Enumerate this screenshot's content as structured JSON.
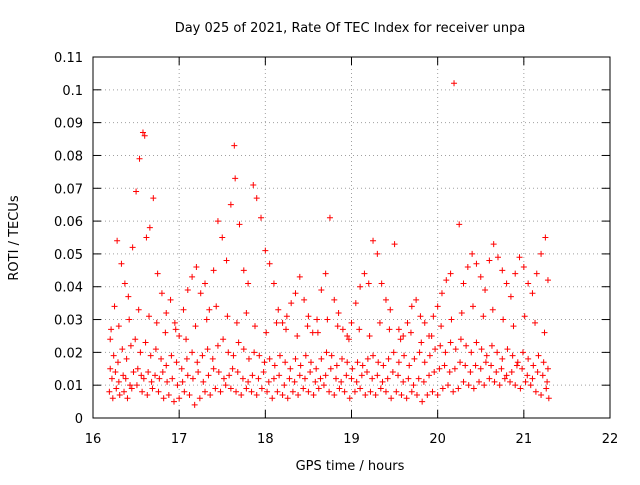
{
  "chart_data": {
    "type": "scatter",
    "title": "Day 025 of 2021, Rate Of TEC Index for receiver unpa",
    "xlabel": "GPS time / hours",
    "ylabel": "ROTI / TECUs",
    "xlim": [
      16,
      22
    ],
    "ylim": [
      0,
      0.11
    ],
    "x_ticks": [
      16,
      17,
      18,
      19,
      20,
      21,
      22
    ],
    "x_tick_labels": [
      "16",
      "17",
      "18",
      "19",
      "20",
      "21",
      "22"
    ],
    "y_ticks": [
      0,
      0.01,
      0.02,
      0.03,
      0.04,
      0.05,
      0.06,
      0.07,
      0.08,
      0.09,
      0.1,
      0.11
    ],
    "y_tick_labels": [
      "0",
      "0.01",
      "0.02",
      "0.03",
      "0.04",
      "0.05",
      "0.06",
      "0.07",
      "0.08",
      "0.09",
      "0.1",
      "0.11"
    ],
    "grid": true,
    "legend": "none",
    "marker": "+",
    "color": "#ff0000",
    "x_data_range": [
      16.17,
      21.3
    ],
    "series": [
      {
        "x": [
          16.21,
          16.25,
          16.28,
          16.33,
          16.37,
          16.41,
          16.46,
          16.5,
          16.54,
          16.58,
          16.6,
          16.62,
          16.66,
          16.7,
          16.75,
          16.8,
          16.85,
          16.9,
          16.95,
          17.0,
          17.05,
          17.1,
          17.15,
          17.2,
          17.25,
          17.3,
          17.35,
          17.4,
          17.45,
          17.5,
          17.55,
          17.6,
          17.64,
          17.65,
          17.7,
          17.75,
          17.8,
          17.86,
          17.9,
          17.95,
          18.0,
          18.05,
          18.1,
          18.15,
          18.2,
          18.25,
          18.3,
          18.35,
          18.4,
          18.45,
          18.5,
          18.55,
          18.6,
          18.65,
          18.7,
          18.75,
          18.8,
          18.85,
          18.9,
          18.95,
          19.0,
          19.05,
          19.1,
          19.15,
          19.2,
          19.25,
          19.3,
          19.35,
          19.4,
          19.45,
          19.5,
          19.55,
          19.6,
          19.65,
          19.7,
          19.75,
          19.8,
          19.85,
          19.9,
          19.95,
          20.0,
          20.05,
          20.1,
          20.15,
          20.19,
          20.25,
          20.3,
          20.35,
          20.4,
          20.45,
          20.5,
          20.55,
          20.6,
          20.65,
          20.7,
          20.75,
          20.8,
          20.85,
          20.9,
          20.95,
          21.0,
          21.05,
          21.1,
          21.15,
          21.2,
          21.25,
          21.28
        ],
        "y": [
          0.027,
          0.034,
          0.054,
          0.047,
          0.041,
          0.037,
          0.052,
          0.069,
          0.079,
          0.087,
          0.086,
          0.055,
          0.058,
          0.067,
          0.044,
          0.038,
          0.032,
          0.036,
          0.029,
          0.025,
          0.033,
          0.039,
          0.043,
          0.046,
          0.038,
          0.041,
          0.033,
          0.045,
          0.06,
          0.055,
          0.048,
          0.065,
          0.083,
          0.073,
          0.059,
          0.045,
          0.041,
          0.071,
          0.067,
          0.061,
          0.051,
          0.047,
          0.041,
          0.033,
          0.029,
          0.031,
          0.035,
          0.038,
          0.043,
          0.036,
          0.031,
          0.026,
          0.03,
          0.039,
          0.044,
          0.061,
          0.036,
          0.032,
          0.027,
          0.025,
          0.029,
          0.035,
          0.04,
          0.044,
          0.041,
          0.054,
          0.05,
          0.041,
          0.036,
          0.033,
          0.053,
          0.027,
          0.025,
          0.029,
          0.034,
          0.036,
          0.031,
          0.029,
          0.025,
          0.031,
          0.034,
          0.038,
          0.042,
          0.044,
          0.102,
          0.059,
          0.041,
          0.046,
          0.05,
          0.047,
          0.043,
          0.039,
          0.048,
          0.053,
          0.049,
          0.045,
          0.041,
          0.037,
          0.044,
          0.049,
          0.046,
          0.041,
          0.038,
          0.044,
          0.05,
          0.055,
          0.042
        ]
      },
      {
        "x": [
          16.2,
          16.24,
          16.29,
          16.34,
          16.39,
          16.44,
          16.49,
          16.55,
          16.61,
          16.67,
          16.73,
          16.79,
          16.85,
          16.91,
          16.97,
          17.03,
          17.09,
          17.15,
          17.21,
          17.27,
          17.33,
          17.39,
          17.45,
          17.51,
          17.57,
          17.63,
          17.69,
          17.75,
          17.81,
          17.87,
          17.93,
          17.99,
          18.05,
          18.11,
          18.17,
          18.23,
          18.29,
          18.35,
          18.41,
          18.47,
          18.53,
          18.59,
          18.65,
          18.71,
          18.77,
          18.83,
          18.89,
          18.95,
          19.01,
          19.07,
          19.13,
          19.19,
          19.25,
          19.31,
          19.37,
          19.43,
          19.49,
          19.55,
          19.61,
          19.67,
          19.73,
          19.79,
          19.85,
          19.91,
          19.97,
          20.03,
          20.09,
          20.15,
          20.21,
          20.27,
          20.33,
          20.39,
          20.45,
          20.51,
          20.57,
          20.63,
          20.69,
          20.75,
          20.81,
          20.87,
          20.93,
          20.99,
          21.05,
          21.11,
          21.17,
          21.23,
          21.28
        ],
        "y": [
          0.015,
          0.019,
          0.017,
          0.021,
          0.018,
          0.022,
          0.024,
          0.02,
          0.023,
          0.019,
          0.021,
          0.018,
          0.016,
          0.019,
          0.017,
          0.015,
          0.018,
          0.02,
          0.017,
          0.019,
          0.021,
          0.018,
          0.022,
          0.024,
          0.02,
          0.019,
          0.023,
          0.021,
          0.018,
          0.02,
          0.019,
          0.017,
          0.018,
          0.016,
          0.019,
          0.017,
          0.015,
          0.018,
          0.016,
          0.019,
          0.017,
          0.015,
          0.018,
          0.02,
          0.019,
          0.016,
          0.018,
          0.017,
          0.015,
          0.017,
          0.016,
          0.018,
          0.019,
          0.017,
          0.016,
          0.018,
          0.02,
          0.017,
          0.019,
          0.016,
          0.018,
          0.02,
          0.017,
          0.019,
          0.021,
          0.022,
          0.02,
          0.023,
          0.021,
          0.024,
          0.022,
          0.02,
          0.023,
          0.021,
          0.019,
          0.022,
          0.02,
          0.018,
          0.021,
          0.019,
          0.017,
          0.02,
          0.018,
          0.016,
          0.019,
          0.017,
          0.015
        ]
      },
      {
        "x": [
          16.19,
          16.23,
          16.27,
          16.31,
          16.36,
          16.4,
          16.45,
          16.51,
          16.57,
          16.63,
          16.69,
          16.76,
          16.82,
          16.88,
          16.94,
          17.0,
          17.06,
          17.12,
          17.18,
          17.24,
          17.3,
          17.36,
          17.42,
          17.48,
          17.54,
          17.6,
          17.66,
          17.72,
          17.78,
          17.84,
          17.9,
          17.96,
          18.02,
          18.08,
          18.14,
          18.2,
          18.26,
          18.32,
          18.38,
          18.44,
          18.5,
          18.56,
          18.62,
          18.68,
          18.74,
          18.8,
          18.86,
          18.92,
          18.98,
          19.04,
          19.1,
          19.16,
          19.22,
          19.28,
          19.34,
          19.4,
          19.46,
          19.52,
          19.58,
          19.64,
          19.7,
          19.76,
          19.82,
          19.88,
          19.94,
          20.0,
          20.06,
          20.12,
          20.18,
          20.24,
          20.3,
          20.36,
          20.42,
          20.48,
          20.54,
          20.6,
          20.66,
          20.72,
          20.78,
          20.84,
          20.9,
          20.96,
          21.02,
          21.08,
          21.14,
          21.2,
          21.26,
          21.29
        ],
        "y": [
          0.008,
          0.006,
          0.009,
          0.007,
          0.008,
          0.006,
          0.009,
          0.01,
          0.008,
          0.007,
          0.009,
          0.008,
          0.006,
          0.007,
          0.005,
          0.006,
          0.008,
          0.007,
          0.004,
          0.006,
          0.008,
          0.007,
          0.009,
          0.008,
          0.01,
          0.009,
          0.008,
          0.007,
          0.009,
          0.008,
          0.007,
          0.009,
          0.008,
          0.006,
          0.008,
          0.007,
          0.006,
          0.008,
          0.007,
          0.009,
          0.008,
          0.007,
          0.009,
          0.01,
          0.008,
          0.007,
          0.009,
          0.008,
          0.006,
          0.008,
          0.009,
          0.007,
          0.008,
          0.007,
          0.009,
          0.008,
          0.006,
          0.008,
          0.007,
          0.006,
          0.008,
          0.007,
          0.005,
          0.007,
          0.008,
          0.007,
          0.009,
          0.01,
          0.008,
          0.009,
          0.011,
          0.01,
          0.009,
          0.011,
          0.01,
          0.012,
          0.011,
          0.01,
          0.012,
          0.011,
          0.01,
          0.009,
          0.011,
          0.01,
          0.008,
          0.007,
          0.009,
          0.006
        ]
      },
      {
        "x": [
          16.22,
          16.26,
          16.3,
          16.35,
          16.38,
          16.43,
          16.47,
          16.52,
          16.56,
          16.59,
          16.64,
          16.68,
          16.72,
          16.77,
          16.81,
          16.86,
          16.92,
          16.98,
          17.04,
          17.1,
          17.16,
          17.22,
          17.28,
          17.34,
          17.4,
          17.46,
          17.52,
          17.58,
          17.62,
          17.68,
          17.74,
          17.8,
          17.85,
          17.92,
          17.98,
          18.04,
          18.1,
          18.16,
          18.22,
          18.28,
          18.34,
          18.4,
          18.46,
          18.52,
          18.58,
          18.64,
          18.7,
          18.76,
          18.82,
          18.88,
          18.94,
          19.0,
          19.06,
          19.12,
          19.18,
          19.24,
          19.3,
          19.36,
          19.42,
          19.48,
          19.54,
          19.6,
          19.66,
          19.72,
          19.78,
          19.84,
          19.9,
          19.96,
          20.02,
          20.08,
          20.14,
          20.2,
          20.26,
          20.32,
          20.38,
          20.44,
          20.5,
          20.56,
          20.62,
          20.68,
          20.74,
          20.8,
          20.86,
          20.92,
          20.98,
          21.04,
          21.1,
          21.16,
          21.22,
          21.27
        ],
        "y": [
          0.012,
          0.014,
          0.011,
          0.013,
          0.012,
          0.01,
          0.014,
          0.015,
          0.013,
          0.012,
          0.014,
          0.011,
          0.013,
          0.012,
          0.014,
          0.011,
          0.012,
          0.01,
          0.011,
          0.013,
          0.012,
          0.014,
          0.011,
          0.013,
          0.015,
          0.014,
          0.012,
          0.013,
          0.015,
          0.014,
          0.012,
          0.011,
          0.013,
          0.012,
          0.014,
          0.011,
          0.012,
          0.013,
          0.01,
          0.012,
          0.011,
          0.013,
          0.012,
          0.014,
          0.011,
          0.012,
          0.013,
          0.015,
          0.012,
          0.011,
          0.013,
          0.012,
          0.011,
          0.013,
          0.014,
          0.012,
          0.013,
          0.011,
          0.012,
          0.014,
          0.013,
          0.011,
          0.012,
          0.01,
          0.012,
          0.011,
          0.013,
          0.014,
          0.015,
          0.016,
          0.014,
          0.015,
          0.017,
          0.016,
          0.014,
          0.016,
          0.015,
          0.017,
          0.016,
          0.014,
          0.015,
          0.013,
          0.014,
          0.016,
          0.015,
          0.013,
          0.012,
          0.014,
          0.013,
          0.011
        ]
      },
      {
        "x": [
          16.2,
          16.3,
          16.42,
          16.53,
          16.65,
          16.74,
          16.84,
          16.96,
          17.08,
          17.19,
          17.32,
          17.43,
          17.56,
          17.67,
          17.78,
          17.88,
          18.01,
          18.13,
          18.24,
          18.37,
          18.49,
          18.61,
          18.72,
          18.84,
          18.97,
          19.09,
          19.21,
          19.33,
          19.44,
          19.57,
          19.69,
          19.81,
          19.93,
          20.04,
          20.16,
          20.28,
          20.41,
          20.53,
          20.64,
          20.76,
          20.88,
          21.01,
          21.13,
          21.24
        ],
        "y": [
          0.024,
          0.028,
          0.03,
          0.033,
          0.031,
          0.029,
          0.026,
          0.027,
          0.024,
          0.028,
          0.03,
          0.034,
          0.031,
          0.029,
          0.032,
          0.028,
          0.026,
          0.029,
          0.027,
          0.025,
          0.028,
          0.026,
          0.03,
          0.028,
          0.024,
          0.027,
          0.025,
          0.029,
          0.027,
          0.024,
          0.026,
          0.023,
          0.025,
          0.028,
          0.03,
          0.032,
          0.034,
          0.031,
          0.033,
          0.03,
          0.028,
          0.031,
          0.029,
          0.026
        ]
      }
    ]
  }
}
